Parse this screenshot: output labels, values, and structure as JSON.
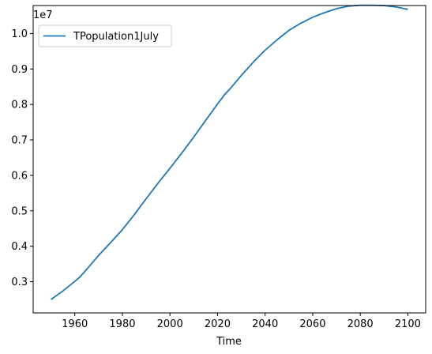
{
  "chart_data": {
    "type": "line",
    "title": "",
    "xlabel": "Time",
    "ylabel": "",
    "y_offset_label": "1e7",
    "xlim": [
      1942.5,
      2107.5
    ],
    "ylim": [
      2.12,
      10.79
    ],
    "y_scale_note": "values shown in units of 1e7 (0.1 = 1,000,000)",
    "x_ticks": [
      1960,
      1980,
      2000,
      2020,
      2040,
      2060,
      2080,
      2100
    ],
    "x_tick_labels": [
      "1960",
      "1980",
      "2000",
      "2020",
      "2040",
      "2060",
      "2080",
      "2100"
    ],
    "y_ticks": [
      3,
      4,
      5,
      6,
      7,
      8,
      9,
      10
    ],
    "y_tick_labels": [
      "0.3",
      "0.4",
      "0.5",
      "0.6",
      "0.7",
      "0.8",
      "0.9",
      "1.0"
    ],
    "grid": false,
    "legend_position": "upper-left",
    "series": [
      {
        "name": "TPopulation1July",
        "color": "#1f77b4",
        "x": [
          1950,
          1955,
          1960,
          1962,
          1965,
          1970,
          1975,
          1980,
          1985,
          1990,
          1995,
          2000,
          2005,
          2010,
          2015,
          2020,
          2023,
          2025,
          2030,
          2035,
          2040,
          2045,
          2050,
          2055,
          2060,
          2065,
          2070,
          2075,
          2080,
          2085,
          2090,
          2095,
          2100
        ],
        "y": [
          2.5,
          2.74,
          3.01,
          3.12,
          3.35,
          3.74,
          4.1,
          4.47,
          4.89,
          5.34,
          5.78,
          6.2,
          6.63,
          7.08,
          7.55,
          8.01,
          8.28,
          8.42,
          8.82,
          9.19,
          9.53,
          9.82,
          10.09,
          10.29,
          10.46,
          10.59,
          10.7,
          10.77,
          10.8,
          10.8,
          10.79,
          10.75,
          10.68
        ]
      }
    ]
  }
}
